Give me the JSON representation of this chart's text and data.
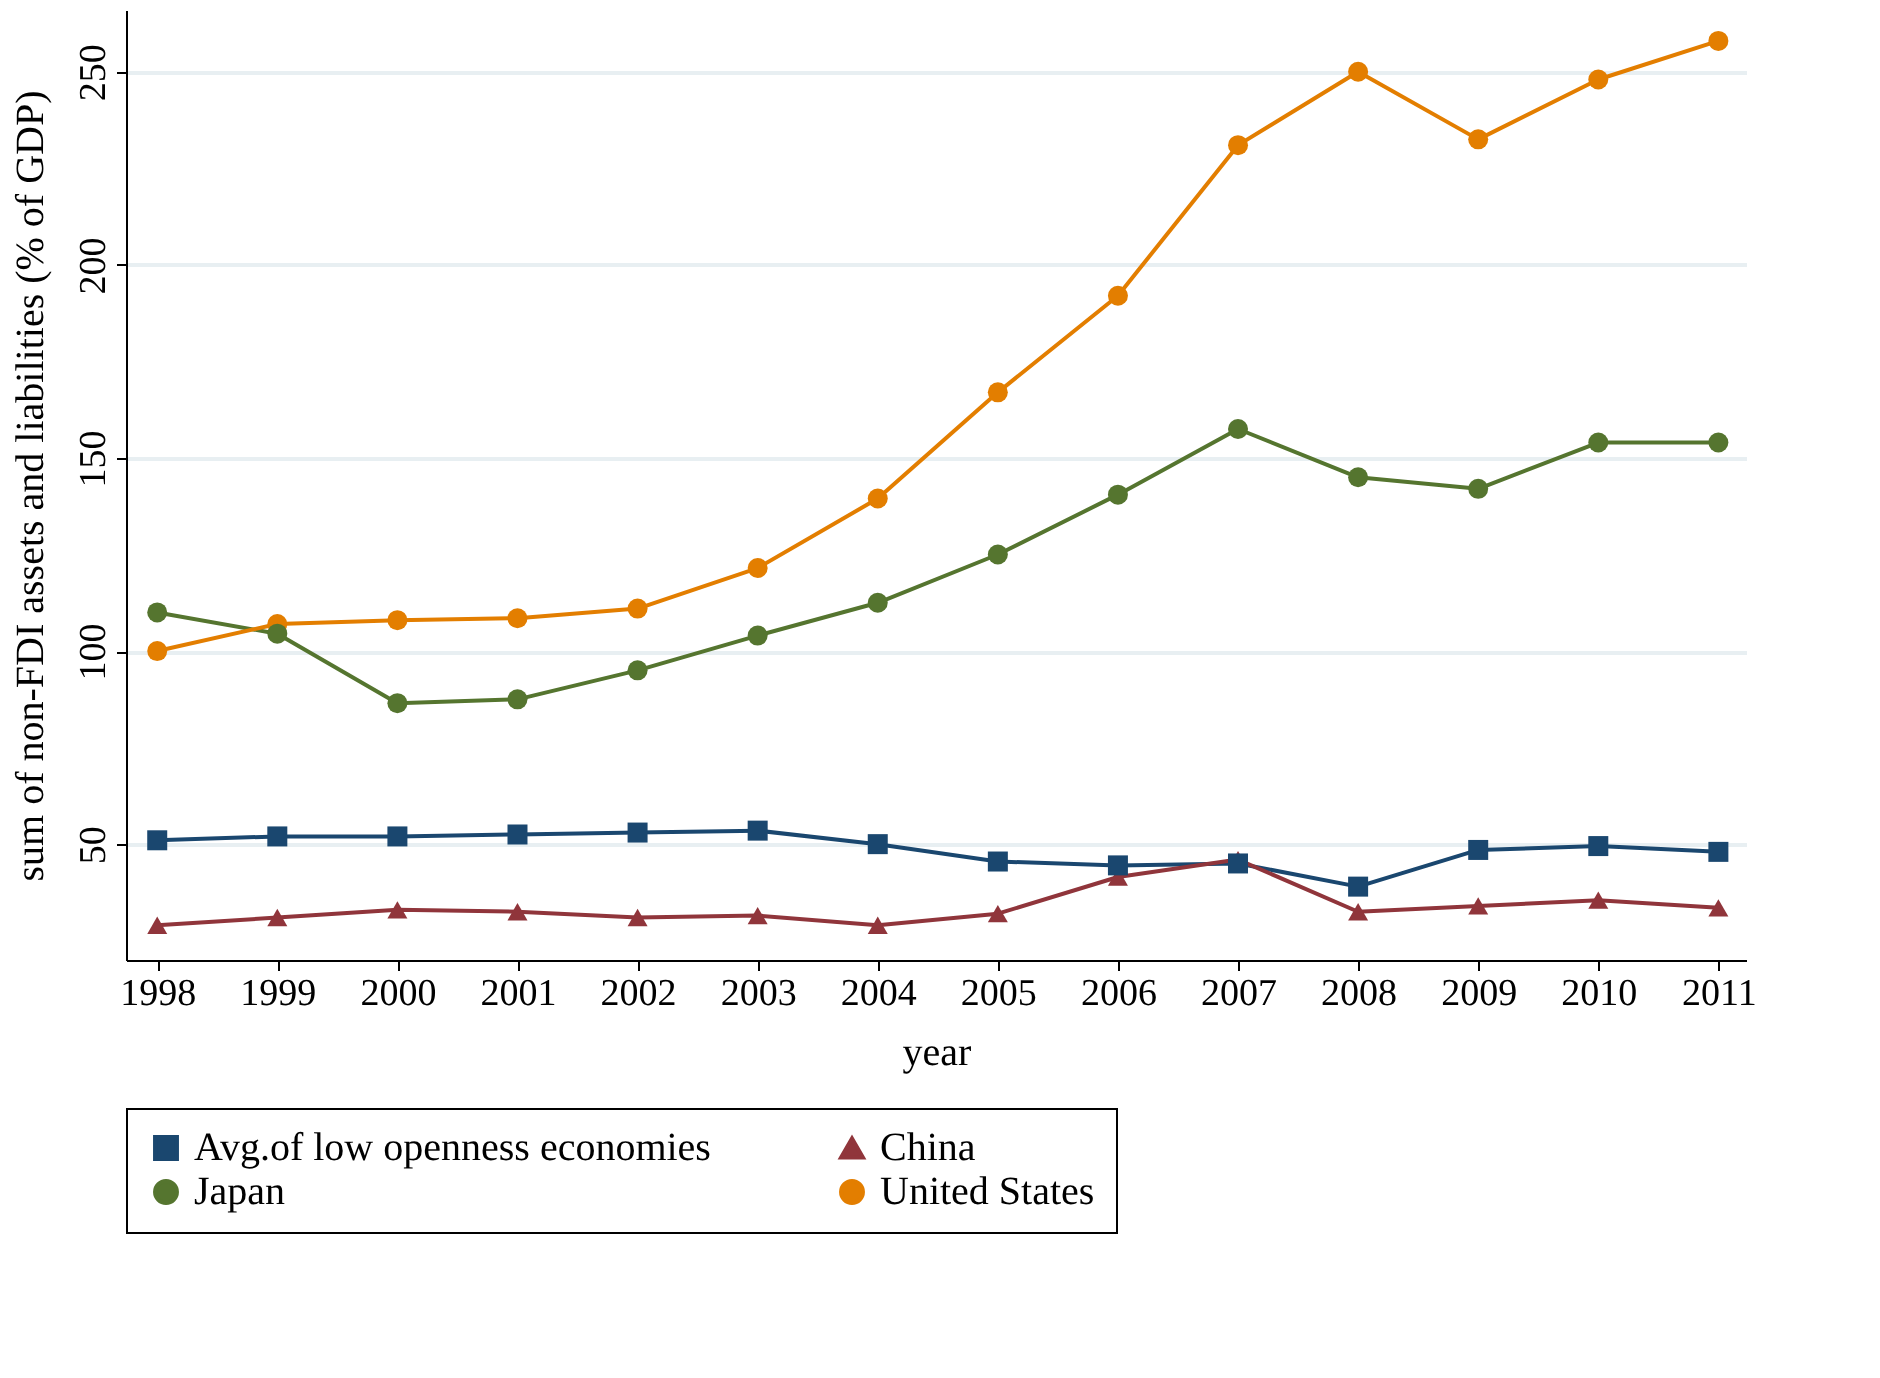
{
  "chart_data": {
    "type": "line",
    "xlabel": "year",
    "ylabel": "sum of non-FDI assets and liabilities (% of GDP)",
    "x": [
      1998,
      1999,
      2000,
      2001,
      2002,
      2003,
      2004,
      2005,
      2006,
      2007,
      2008,
      2009,
      2010,
      2011
    ],
    "series": [
      {
        "name": "Avg.of low openness economies",
        "color": "#1a476f",
        "marker": "square",
        "values": [
          51,
          52,
          52,
          52.5,
          53,
          53.5,
          50,
          45.5,
          44.5,
          45,
          39,
          48.5,
          49.5,
          48
        ]
      },
      {
        "name": "China",
        "color": "#90353b",
        "marker": "triangle",
        "values": [
          29,
          31,
          33,
          32.5,
          31,
          31.5,
          29,
          32,
          41.5,
          46,
          32.5,
          34,
          35.5,
          33.5
        ]
      },
      {
        "name": "Japan",
        "color": "#55752f",
        "marker": "circle",
        "values": [
          110,
          104.5,
          86.5,
          87.5,
          95,
          104,
          112.5,
          125,
          140.5,
          157.5,
          145,
          142,
          154,
          154
        ]
      },
      {
        "name": "United States",
        "color": "#e37e00",
        "marker": "circle",
        "values": [
          100,
          107,
          108,
          108.5,
          111,
          121.5,
          139.5,
          167,
          192,
          231,
          250,
          232.5,
          248,
          258
        ]
      }
    ],
    "xlim": [
      1997.74,
      2011.23
    ],
    "xticks": [
      1998,
      1999,
      2000,
      2001,
      2002,
      2003,
      2004,
      2005,
      2006,
      2007,
      2008,
      2009,
      2010,
      2011
    ],
    "ylim": [
      20,
      266
    ],
    "yticks": [
      50,
      100,
      150,
      200,
      250
    ],
    "grid": "y",
    "legend": "bottom",
    "line_style": "solid"
  }
}
